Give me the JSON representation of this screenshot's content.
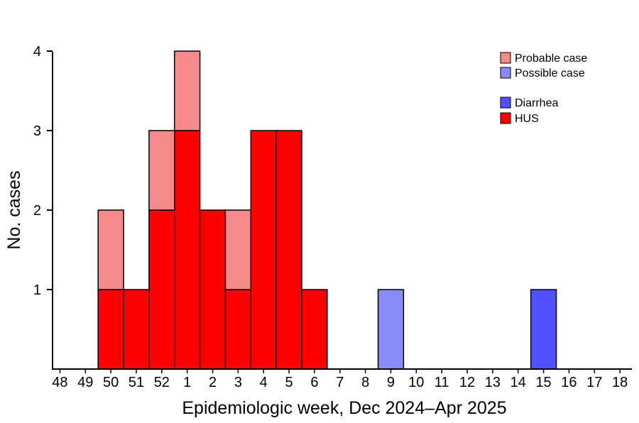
{
  "chart_data": {
    "type": "bar",
    "stacked": true,
    "xlabel": "Epidemiologic week, Dec 2024–Apr 2025",
    "ylabel": "No. cases",
    "ylim": [
      0,
      4
    ],
    "yticks": [
      "1",
      "2",
      "3",
      "4"
    ],
    "grid": false,
    "legend_position": "top-right",
    "categories": [
      "48",
      "49",
      "50",
      "51",
      "52",
      "1",
      "2",
      "3",
      "4",
      "5",
      "6",
      "7",
      "8",
      "9",
      "10",
      "11",
      "12",
      "13",
      "14",
      "15",
      "16",
      "17",
      "18"
    ],
    "series": [
      {
        "name": "HUS",
        "color": "#ff0000",
        "values": [
          0,
          0,
          1,
          1,
          2,
          3,
          2,
          1,
          3,
          3,
          1,
          0,
          0,
          0,
          0,
          0,
          0,
          0,
          0,
          0,
          0,
          0,
          0
        ]
      },
      {
        "name": "Probable case",
        "color": "#f48a8a",
        "values": [
          0,
          0,
          1,
          0,
          1,
          1,
          0,
          1,
          0,
          0,
          0,
          0,
          0,
          0,
          0,
          0,
          0,
          0,
          0,
          0,
          0,
          0,
          0
        ]
      },
      {
        "name": "Diarrhea",
        "color": "#5050ff",
        "values": [
          0,
          0,
          0,
          0,
          0,
          0,
          0,
          0,
          0,
          0,
          0,
          0,
          0,
          0,
          0,
          0,
          0,
          0,
          0,
          1,
          0,
          0,
          0
        ]
      },
      {
        "name": "Possible case",
        "color": "#8a8afa",
        "values": [
          0,
          0,
          0,
          0,
          0,
          0,
          0,
          0,
          0,
          0,
          0,
          0,
          0,
          1,
          0,
          0,
          0,
          0,
          0,
          0,
          0,
          0,
          0
        ]
      }
    ],
    "legend": [
      {
        "label": "Probable case",
        "color": "#f48a8a"
      },
      {
        "label": "Possible case",
        "color": "#8a8afa"
      },
      {
        "label": "Diarrhea",
        "color": "#5050ff"
      },
      {
        "label": "HUS",
        "color": "#ff0000"
      }
    ]
  }
}
